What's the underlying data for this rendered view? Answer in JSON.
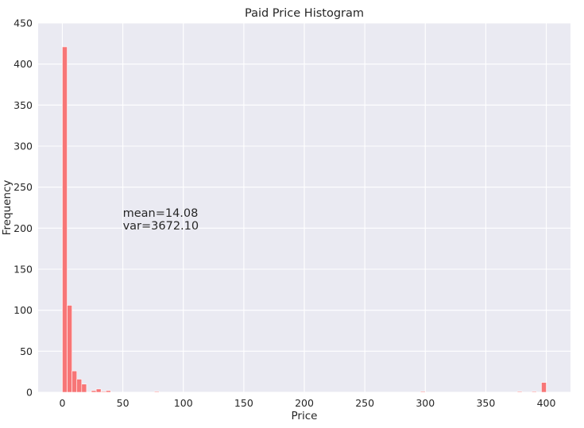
{
  "chart_data": {
    "type": "bar",
    "title": "Paid Price Histogram",
    "xlabel": "Price",
    "ylabel": "Frequency",
    "xlim": [
      -20,
      420
    ],
    "ylim": [
      0,
      450
    ],
    "xticks": [
      0,
      50,
      100,
      150,
      200,
      250,
      300,
      350,
      400
    ],
    "yticks": [
      0,
      50,
      100,
      150,
      200,
      250,
      300,
      350,
      400,
      450
    ],
    "bin_width": 4.0,
    "bins": [
      {
        "x0": 0.0,
        "count": 421
      },
      {
        "x0": 4.0,
        "count": 106
      },
      {
        "x0": 8.0,
        "count": 26
      },
      {
        "x0": 12.0,
        "count": 16
      },
      {
        "x0": 16.0,
        "count": 10
      },
      {
        "x0": 24.0,
        "count": 2
      },
      {
        "x0": 28.0,
        "count": 4
      },
      {
        "x0": 32.0,
        "count": 1
      },
      {
        "x0": 36.0,
        "count": 2
      },
      {
        "x0": 76.0,
        "count": 1
      },
      {
        "x0": 296.0,
        "count": 1
      },
      {
        "x0": 376.0,
        "count": 1
      },
      {
        "x0": 388.0,
        "count": 1
      },
      {
        "x0": 396.0,
        "count": 12
      }
    ],
    "annotation": {
      "line1": "mean=14.08",
      "line2": "var=3672.10",
      "x": 50,
      "y": 214
    },
    "grid": true,
    "colors": {
      "background": "#EAEAF2",
      "bar": "#F77677",
      "grid": "#FFFFFF"
    }
  }
}
